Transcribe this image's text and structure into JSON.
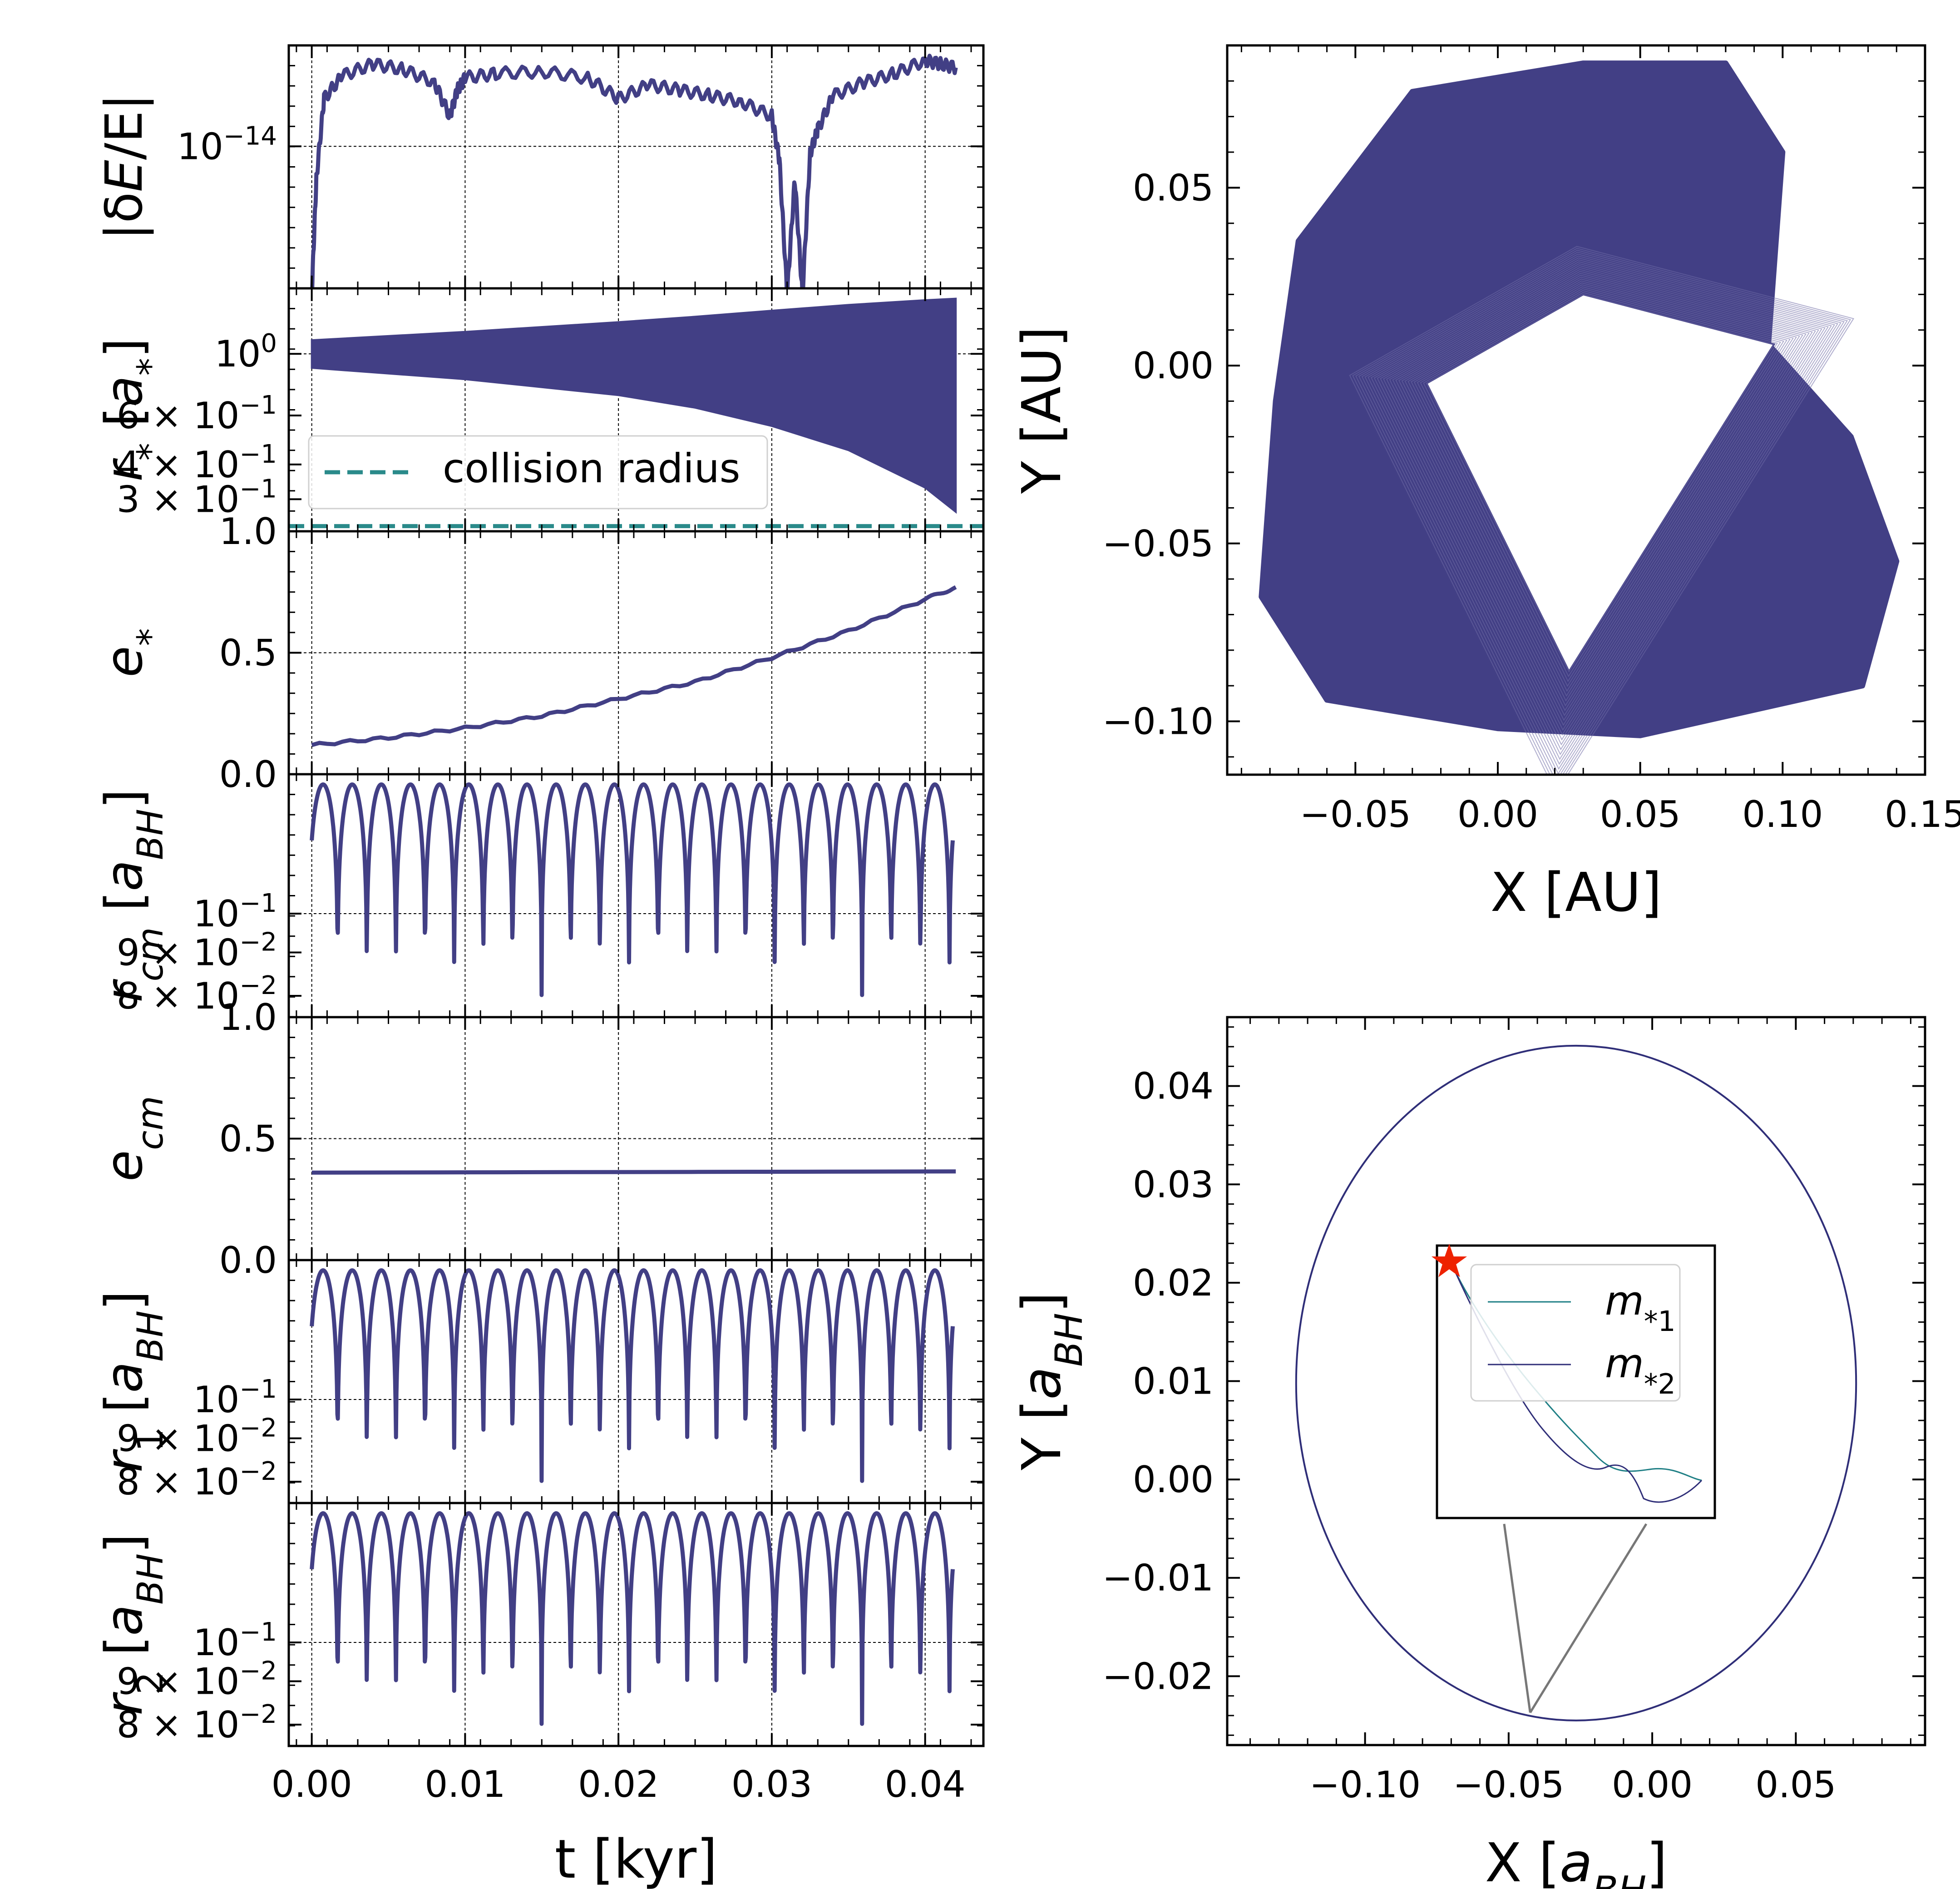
{
  "colors": {
    "series": "#423F85",
    "collision": "#2A8A8A",
    "star": "#EE2200",
    "m1": "#1F7F85",
    "m2": "#2F2E78"
  },
  "chart_data": [
    {
      "id": "energy",
      "type": "line",
      "ylabel": "|δE/E|",
      "ylabel_parts": [
        "|δ",
        "E",
        "/E|"
      ],
      "yscale": "log",
      "ytick_labels": [
        {
          "base": "10",
          "exp": "−14"
        }
      ],
      "x": [
        0.0,
        0.0003,
        0.0008,
        0.002,
        0.004,
        0.006,
        0.008,
        0.009,
        0.0095,
        0.01,
        0.012,
        0.015,
        0.018,
        0.02,
        0.022,
        0.024,
        0.026,
        0.028,
        0.03,
        0.0305,
        0.031,
        0.0315,
        0.032,
        0.0325,
        0.033,
        0.034,
        0.036,
        0.038,
        0.04,
        0.041,
        0.042
      ],
      "y": [
        1e-15,
        6e-15,
        2.1e-14,
        3e-14,
        3.6e-14,
        3.3e-14,
        2.7e-14,
        1.6e-14,
        2.4e-14,
        2.9e-14,
        3.1e-14,
        3.2e-14,
        2.9e-14,
        2.1e-14,
        2.6e-14,
        2.4e-14,
        2.2e-14,
        2e-14,
        1.6e-14,
        8e-15,
        1e-15,
        6e-15,
        1e-15,
        9e-15,
        1.3e-14,
        2.2e-14,
        2.7e-14,
        3.1e-14,
        3.8e-14,
        3.6e-14,
        3.4e-14
      ]
    },
    {
      "id": "rstar",
      "type": "area",
      "ylabel": "r* [a*]",
      "ylabel_parts": [
        "r",
        "*",
        " [",
        "a",
        "*",
        "]"
      ],
      "yscale": "log",
      "ytick_labels": [
        {
          "base": "10",
          "exp": "0"
        },
        {
          "text": "6 × 10",
          "exp": "−1"
        },
        {
          "text": "4 × 10",
          "exp": "−1"
        },
        {
          "text": "3 × 10",
          "exp": "−1"
        }
      ],
      "x": [
        0.0,
        0.01,
        0.02,
        0.025,
        0.03,
        0.035,
        0.04,
        0.042
      ],
      "upper": [
        1.12,
        1.2,
        1.3,
        1.36,
        1.43,
        1.5,
        1.56,
        1.58
      ],
      "lower": [
        0.89,
        0.81,
        0.71,
        0.64,
        0.55,
        0.45,
        0.33,
        0.27
      ],
      "collision_radius": 0.24,
      "legend": "collision radius"
    },
    {
      "id": "estar",
      "type": "line",
      "ylabel": "e*",
      "ylabel_parts": [
        "e",
        "*"
      ],
      "ylim": [
        0.0,
        1.0
      ],
      "ytick_labels": [
        "1.0",
        "0.5",
        "0.0"
      ],
      "x": [
        0.0,
        0.005,
        0.01,
        0.015,
        0.02,
        0.025,
        0.03,
        0.035,
        0.04,
        0.042
      ],
      "y": [
        0.12,
        0.15,
        0.19,
        0.24,
        0.31,
        0.38,
        0.48,
        0.59,
        0.72,
        0.77
      ]
    },
    {
      "id": "rcm",
      "type": "line",
      "ylabel": "r_cm [a_BH]",
      "ylabel_parts": [
        "r",
        "cm",
        " [",
        "a",
        "BH",
        "]"
      ],
      "yscale": "log",
      "ytick_labels": [
        {
          "base": "10",
          "exp": "−1"
        },
        {
          "text": "9 × 10",
          "exp": "−2"
        },
        {
          "text": "8 × 10",
          "exp": "−2"
        }
      ],
      "y_min": 0.078,
      "y_max": 0.142,
      "n_cycles": 22,
      "period_kyr": 0.0019
    },
    {
      "id": "ecm",
      "type": "line",
      "ylabel": "e_cm",
      "ylabel_parts": [
        "e",
        "cm"
      ],
      "ylim": [
        0.0,
        1.0
      ],
      "ytick_labels": [
        "1.0",
        "0.5",
        "0.0"
      ],
      "x": [
        0.0,
        0.042
      ],
      "y": [
        0.36,
        0.365
      ]
    },
    {
      "id": "r1",
      "type": "line",
      "ylabel": "r_1 [a_BH]",
      "ylabel_parts": [
        "r",
        "1",
        " [",
        "a",
        "BH",
        "]"
      ],
      "yscale": "log",
      "ytick_labels": [
        {
          "base": "10",
          "exp": "−1"
        },
        {
          "text": "9 × 10",
          "exp": "−2"
        },
        {
          "text": "8 × 10",
          "exp": "−2"
        }
      ],
      "y_min": 0.078,
      "y_max": 0.142,
      "n_cycles": 22,
      "period_kyr": 0.0019
    },
    {
      "id": "r2",
      "type": "line",
      "ylabel": "r_2 [a_BH]",
      "ylabel_parts": [
        "r",
        "2",
        " [",
        "a",
        "BH",
        "]"
      ],
      "yscale": "log",
      "ytick_labels": [
        {
          "base": "10",
          "exp": "−1"
        },
        {
          "text": "9 × 10",
          "exp": "−2"
        },
        {
          "text": "8 × 10",
          "exp": "−2"
        }
      ],
      "y_min": 0.078,
      "y_max": 0.142,
      "n_cycles": 22,
      "period_kyr": 0.0019
    },
    {
      "id": "xy_au",
      "type": "line",
      "xlabel": "X [AU]",
      "ylabel": "Y [AU]",
      "xlim": [
        -0.095,
        0.15
      ],
      "ylim": [
        -0.115,
        0.09
      ],
      "xticks": [
        -0.05,
        0.0,
        0.05,
        0.1,
        0.15
      ],
      "xtick_labels": [
        "−0.05",
        "0.00",
        "0.05",
        "0.10",
        "0.15"
      ],
      "yticks": [
        0.05,
        0.0,
        -0.05,
        -0.1
      ],
      "ytick_labels": [
        "0.05",
        "0.00",
        "−0.05",
        "−0.10"
      ],
      "outer_vertices": [
        [
          0.095,
          0.006
        ],
        [
          0.124,
          -0.02
        ],
        [
          0.14,
          -0.055
        ],
        [
          0.128,
          -0.09
        ],
        [
          0.05,
          -0.104
        ],
        [
          0.0,
          -0.102
        ],
        [
          -0.06,
          -0.094
        ],
        [
          -0.083,
          -0.065
        ],
        [
          -0.078,
          -0.01
        ],
        [
          -0.07,
          0.035
        ],
        [
          -0.03,
          0.077
        ],
        [
          0.03,
          0.085
        ],
        [
          0.08,
          0.085
        ],
        [
          0.1,
          0.06
        ]
      ],
      "inner_vertices": [
        [
          0.097,
          0.006
        ],
        [
          0.025,
          -0.086
        ],
        [
          -0.025,
          -0.005
        ],
        [
          0.03,
          0.02
        ]
      ]
    },
    {
      "id": "xy_bh",
      "type": "line",
      "xlabel": "X [a_BH]",
      "ylabel": "Y [a_BH]",
      "xlim": [
        -0.148,
        0.095
      ],
      "ylim": [
        -0.027,
        0.047
      ],
      "xticks": [
        -0.1,
        -0.05,
        0.0,
        0.05
      ],
      "xtick_labels": [
        "−0.10",
        "−0.05",
        "0.00",
        "0.05"
      ],
      "yticks": [
        0.04,
        0.03,
        0.02,
        0.01,
        0.0,
        -0.01,
        -0.02
      ],
      "ytick_labels": [
        "0.04",
        "0.03",
        "0.02",
        "0.01",
        "0.00",
        "−0.01",
        "−0.02"
      ],
      "orbit_center": [
        -0.0265,
        0.0098
      ],
      "orbit_semi_axes": [
        0.0975,
        0.0343
      ],
      "inset_legend": [
        "m*1",
        "m*2"
      ],
      "inset_legend_parts": [
        [
          "m",
          "*1"
        ],
        [
          "m",
          "*2"
        ]
      ]
    }
  ],
  "bottom_axis": {
    "xlabel": "t [kyr]",
    "xticks": [
      0.0,
      0.01,
      0.02,
      0.03,
      0.04
    ],
    "xtick_labels": [
      "0.00",
      "0.01",
      "0.02",
      "0.03",
      "0.04"
    ],
    "xlim": [
      -0.0015,
      0.0438
    ]
  }
}
